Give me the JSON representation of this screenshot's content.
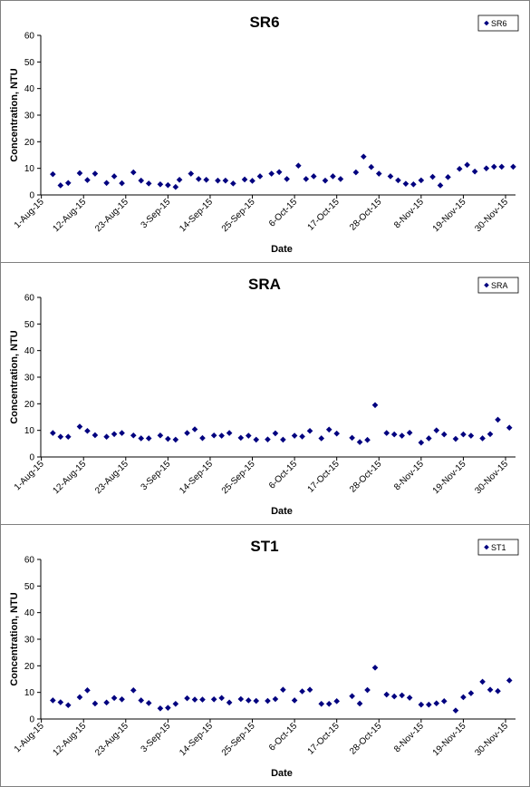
{
  "chart_data": [
    {
      "type": "scatter",
      "title": "SR6",
      "xlabel": "Date",
      "ylabel": "Concentration, NTU",
      "ylim": [
        0,
        60
      ],
      "yticks": [
        "0",
        "10",
        "20",
        "30",
        "40",
        "50",
        "60"
      ],
      "xlim": [
        "2015-08-01",
        "2015-11-30"
      ],
      "xticks": [
        "1-Aug-15",
        "12-Aug-15",
        "23-Aug-15",
        "3-Sep-15",
        "14-Sep-15",
        "25-Sep-15",
        "6-Oct-15",
        "17-Oct-15",
        "28-Oct-15",
        "8-Nov-15",
        "19-Nov-15",
        "30-Nov-15"
      ],
      "legend": "top-right",
      "color": "#00007f",
      "series": [
        {
          "name": "SR6",
          "x": [
            "2015-08-04",
            "2015-08-06",
            "2015-08-08",
            "2015-08-11",
            "2015-08-13",
            "2015-08-15",
            "2015-08-18",
            "2015-08-20",
            "2015-08-22",
            "2015-08-25",
            "2015-08-27",
            "2015-08-29",
            "2015-09-01",
            "2015-09-03",
            "2015-09-05",
            "2015-09-06",
            "2015-09-09",
            "2015-09-11",
            "2015-09-13",
            "2015-09-16",
            "2015-09-18",
            "2015-09-20",
            "2015-09-23",
            "2015-09-25",
            "2015-09-27",
            "2015-09-30",
            "2015-10-02",
            "2015-10-04",
            "2015-10-07",
            "2015-10-09",
            "2015-10-11",
            "2015-10-14",
            "2015-10-16",
            "2015-10-18",
            "2015-10-22",
            "2015-10-24",
            "2015-10-26",
            "2015-10-28",
            "2015-10-31",
            "2015-11-02",
            "2015-11-04",
            "2015-11-06",
            "2015-11-08",
            "2015-11-11",
            "2015-11-13",
            "2015-11-15",
            "2015-11-18",
            "2015-11-20",
            "2015-11-22",
            "2015-11-25",
            "2015-11-27",
            "2015-11-29",
            "2015-12-02"
          ],
          "values": [
            7.8,
            3.6,
            4.5,
            8.2,
            5.6,
            8.0,
            4.5,
            7.0,
            4.4,
            8.5,
            5.4,
            4.3,
            4.0,
            3.7,
            3.0,
            5.7,
            8.0,
            6.0,
            5.7,
            5.4,
            5.4,
            4.3,
            5.8,
            5.3,
            7.0,
            8.0,
            8.6,
            6.0,
            11.0,
            6.0,
            7.0,
            5.4,
            7.0,
            6.0,
            8.5,
            14.4,
            10.5,
            8.0,
            7.0,
            5.5,
            4.2,
            4.0,
            5.5,
            6.8,
            3.6,
            6.7,
            9.8,
            11.3,
            8.8,
            10.0,
            10.6,
            10.6,
            10.6
          ]
        }
      ]
    },
    {
      "type": "scatter",
      "title": "SRA",
      "xlabel": "Date",
      "ylabel": "Concentration, NTU",
      "ylim": [
        0,
        60
      ],
      "yticks": [
        "0",
        "10",
        "20",
        "30",
        "40",
        "50",
        "60"
      ],
      "xlim": [
        "2015-08-01",
        "2015-11-30"
      ],
      "xticks": [
        "1-Aug-15",
        "12-Aug-15",
        "23-Aug-15",
        "3-Sep-15",
        "14-Sep-15",
        "25-Sep-15",
        "6-Oct-15",
        "17-Oct-15",
        "28-Oct-15",
        "8-Nov-15",
        "19-Nov-15",
        "30-Nov-15"
      ],
      "legend": "top-right",
      "color": "#00007f",
      "series": [
        {
          "name": "SRA",
          "x": [
            "2015-08-04",
            "2015-08-06",
            "2015-08-08",
            "2015-08-11",
            "2015-08-13",
            "2015-08-15",
            "2015-08-18",
            "2015-08-20",
            "2015-08-22",
            "2015-08-25",
            "2015-08-27",
            "2015-08-29",
            "2015-09-01",
            "2015-09-03",
            "2015-09-05",
            "2015-09-08",
            "2015-09-10",
            "2015-09-12",
            "2015-09-15",
            "2015-09-17",
            "2015-09-19",
            "2015-09-22",
            "2015-09-24",
            "2015-09-26",
            "2015-09-29",
            "2015-10-01",
            "2015-10-03",
            "2015-10-06",
            "2015-10-08",
            "2015-10-10",
            "2015-10-13",
            "2015-10-15",
            "2015-10-17",
            "2015-10-21",
            "2015-10-23",
            "2015-10-25",
            "2015-10-27",
            "2015-10-30",
            "2015-11-01",
            "2015-11-03",
            "2015-11-05",
            "2015-11-08",
            "2015-11-10",
            "2015-11-12",
            "2015-11-14",
            "2015-11-17",
            "2015-11-19",
            "2015-11-21",
            "2015-11-24",
            "2015-11-26",
            "2015-11-28",
            "2015-12-01"
          ],
          "values": [
            9.0,
            7.6,
            7.6,
            11.4,
            9.8,
            8.2,
            7.6,
            8.6,
            9.0,
            8.1,
            7.0,
            7.0,
            8.1,
            6.8,
            6.5,
            9.0,
            10.4,
            7.1,
            8.1,
            8.0,
            9.0,
            7.2,
            8.0,
            6.5,
            6.6,
            8.9,
            6.5,
            8.0,
            7.7,
            9.8,
            7.0,
            10.3,
            8.8,
            7.2,
            5.6,
            6.4,
            19.5,
            9.0,
            8.5,
            8.0,
            9.1,
            5.4,
            7.0,
            10.0,
            8.5,
            6.8,
            8.5,
            8.0,
            7.0,
            8.6,
            14.0,
            11.0
          ]
        }
      ]
    },
    {
      "type": "scatter",
      "title": "ST1",
      "xlabel": "Date",
      "ylabel": "Concentration, NTU",
      "ylim": [
        0,
        60
      ],
      "yticks": [
        "0",
        "10",
        "20",
        "30",
        "40",
        "50",
        "60"
      ],
      "xlim": [
        "2015-08-01",
        "2015-11-30"
      ],
      "xticks": [
        "1-Aug-15",
        "12-Aug-15",
        "23-Aug-15",
        "3-Sep-15",
        "14-Sep-15",
        "25-Sep-15",
        "6-Oct-15",
        "17-Oct-15",
        "28-Oct-15",
        "8-Nov-15",
        "19-Nov-15",
        "30-Nov-15"
      ],
      "legend": "top-right",
      "color": "#00007f",
      "series": [
        {
          "name": "ST1",
          "x": [
            "2015-08-04",
            "2015-08-06",
            "2015-08-08",
            "2015-08-11",
            "2015-08-13",
            "2015-08-15",
            "2015-08-18",
            "2015-08-20",
            "2015-08-22",
            "2015-08-25",
            "2015-08-27",
            "2015-08-29",
            "2015-09-01",
            "2015-09-03",
            "2015-09-05",
            "2015-09-08",
            "2015-09-10",
            "2015-09-12",
            "2015-09-15",
            "2015-09-17",
            "2015-09-19",
            "2015-09-22",
            "2015-09-24",
            "2015-09-26",
            "2015-09-29",
            "2015-10-01",
            "2015-10-03",
            "2015-10-06",
            "2015-10-08",
            "2015-10-10",
            "2015-10-13",
            "2015-10-15",
            "2015-10-17",
            "2015-10-21",
            "2015-10-23",
            "2015-10-25",
            "2015-10-27",
            "2015-10-30",
            "2015-11-01",
            "2015-11-03",
            "2015-11-05",
            "2015-11-08",
            "2015-11-10",
            "2015-11-12",
            "2015-11-14",
            "2015-11-17",
            "2015-11-19",
            "2015-11-21",
            "2015-11-24",
            "2015-11-26",
            "2015-11-28",
            "2015-12-01"
          ],
          "values": [
            7.0,
            6.3,
            5.2,
            8.2,
            10.8,
            5.8,
            6.2,
            7.9,
            7.4,
            10.8,
            7.0,
            6.0,
            4.0,
            4.2,
            5.7,
            7.8,
            7.3,
            7.3,
            7.4,
            7.9,
            6.2,
            7.5,
            7.0,
            6.8,
            6.8,
            7.5,
            11.0,
            7.0,
            10.4,
            11.0,
            5.7,
            5.7,
            6.7,
            8.6,
            5.8,
            10.9,
            19.3,
            9.2,
            8.5,
            8.9,
            8.0,
            5.4,
            5.4,
            5.9,
            6.7,
            3.2,
            8.2,
            9.7,
            14.0,
            11.0,
            10.5,
            14.5
          ]
        }
      ]
    }
  ]
}
